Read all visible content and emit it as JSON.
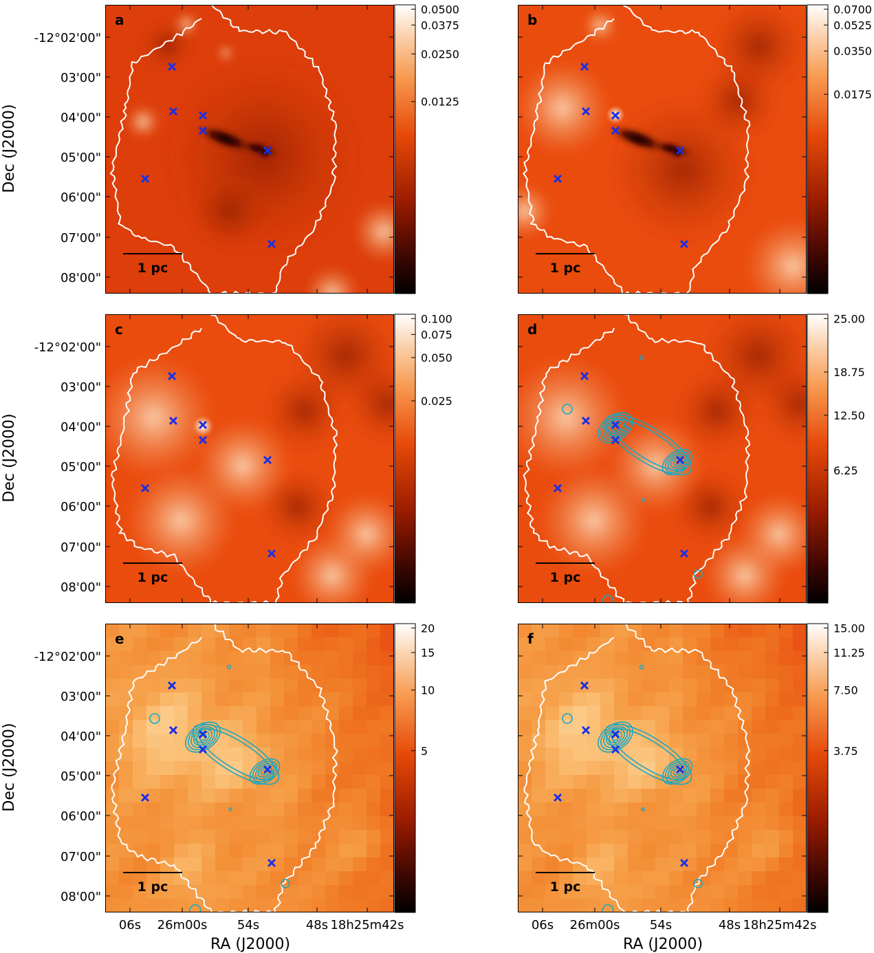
{
  "figure": {
    "y_axis_label": "Dec (J2000)",
    "x_axis_label": "RA (J2000)",
    "dec_ticks": [
      "-12°02'00\"",
      "03'00\"",
      "04'00\"",
      "05'00\"",
      "06'00\"",
      "07'00\"",
      "08'00\""
    ],
    "ra_ticks": [
      "06s",
      "26m00s",
      "54s",
      "48s",
      "18h25m42s"
    ],
    "scale_bar_label": "1 pc",
    "colors": {
      "contour": "#1aa7c0",
      "marker": "#1a2fe8",
      "boundary": "#ffffff",
      "cmap_bright": "#fff8f0",
      "cmap_mid": "#f05a10",
      "cmap_dark": "#000000"
    },
    "panels": [
      {
        "id": "a",
        "label": "a",
        "colorbar_ticks": [
          "0.0500",
          "0.0375",
          "0.0250",
          "0.0125"
        ],
        "contours": false,
        "style": "dark-core"
      },
      {
        "id": "b",
        "label": "b",
        "colorbar_ticks": [
          "0.0700",
          "0.0525",
          "0.0350",
          "0.0175"
        ],
        "contours": false,
        "style": "dark-core-glow"
      },
      {
        "id": "c",
        "label": "c",
        "colorbar_ticks": [
          "0.100",
          "0.075",
          "0.050",
          "0.025"
        ],
        "contours": false,
        "style": "smooth"
      },
      {
        "id": "d",
        "label": "d",
        "colorbar_ticks": [
          "25.00",
          "18.75",
          "12.50",
          "6.25"
        ],
        "contours": true,
        "style": "smooth"
      },
      {
        "id": "e",
        "label": "e",
        "colorbar_ticks": [
          "20",
          "15",
          "10",
          "5"
        ],
        "contours": true,
        "style": "pixel"
      },
      {
        "id": "f",
        "label": "f",
        "colorbar_ticks": [
          "15.00",
          "11.25",
          "7.50",
          "3.75"
        ],
        "contours": true,
        "style": "pixel"
      }
    ]
  }
}
